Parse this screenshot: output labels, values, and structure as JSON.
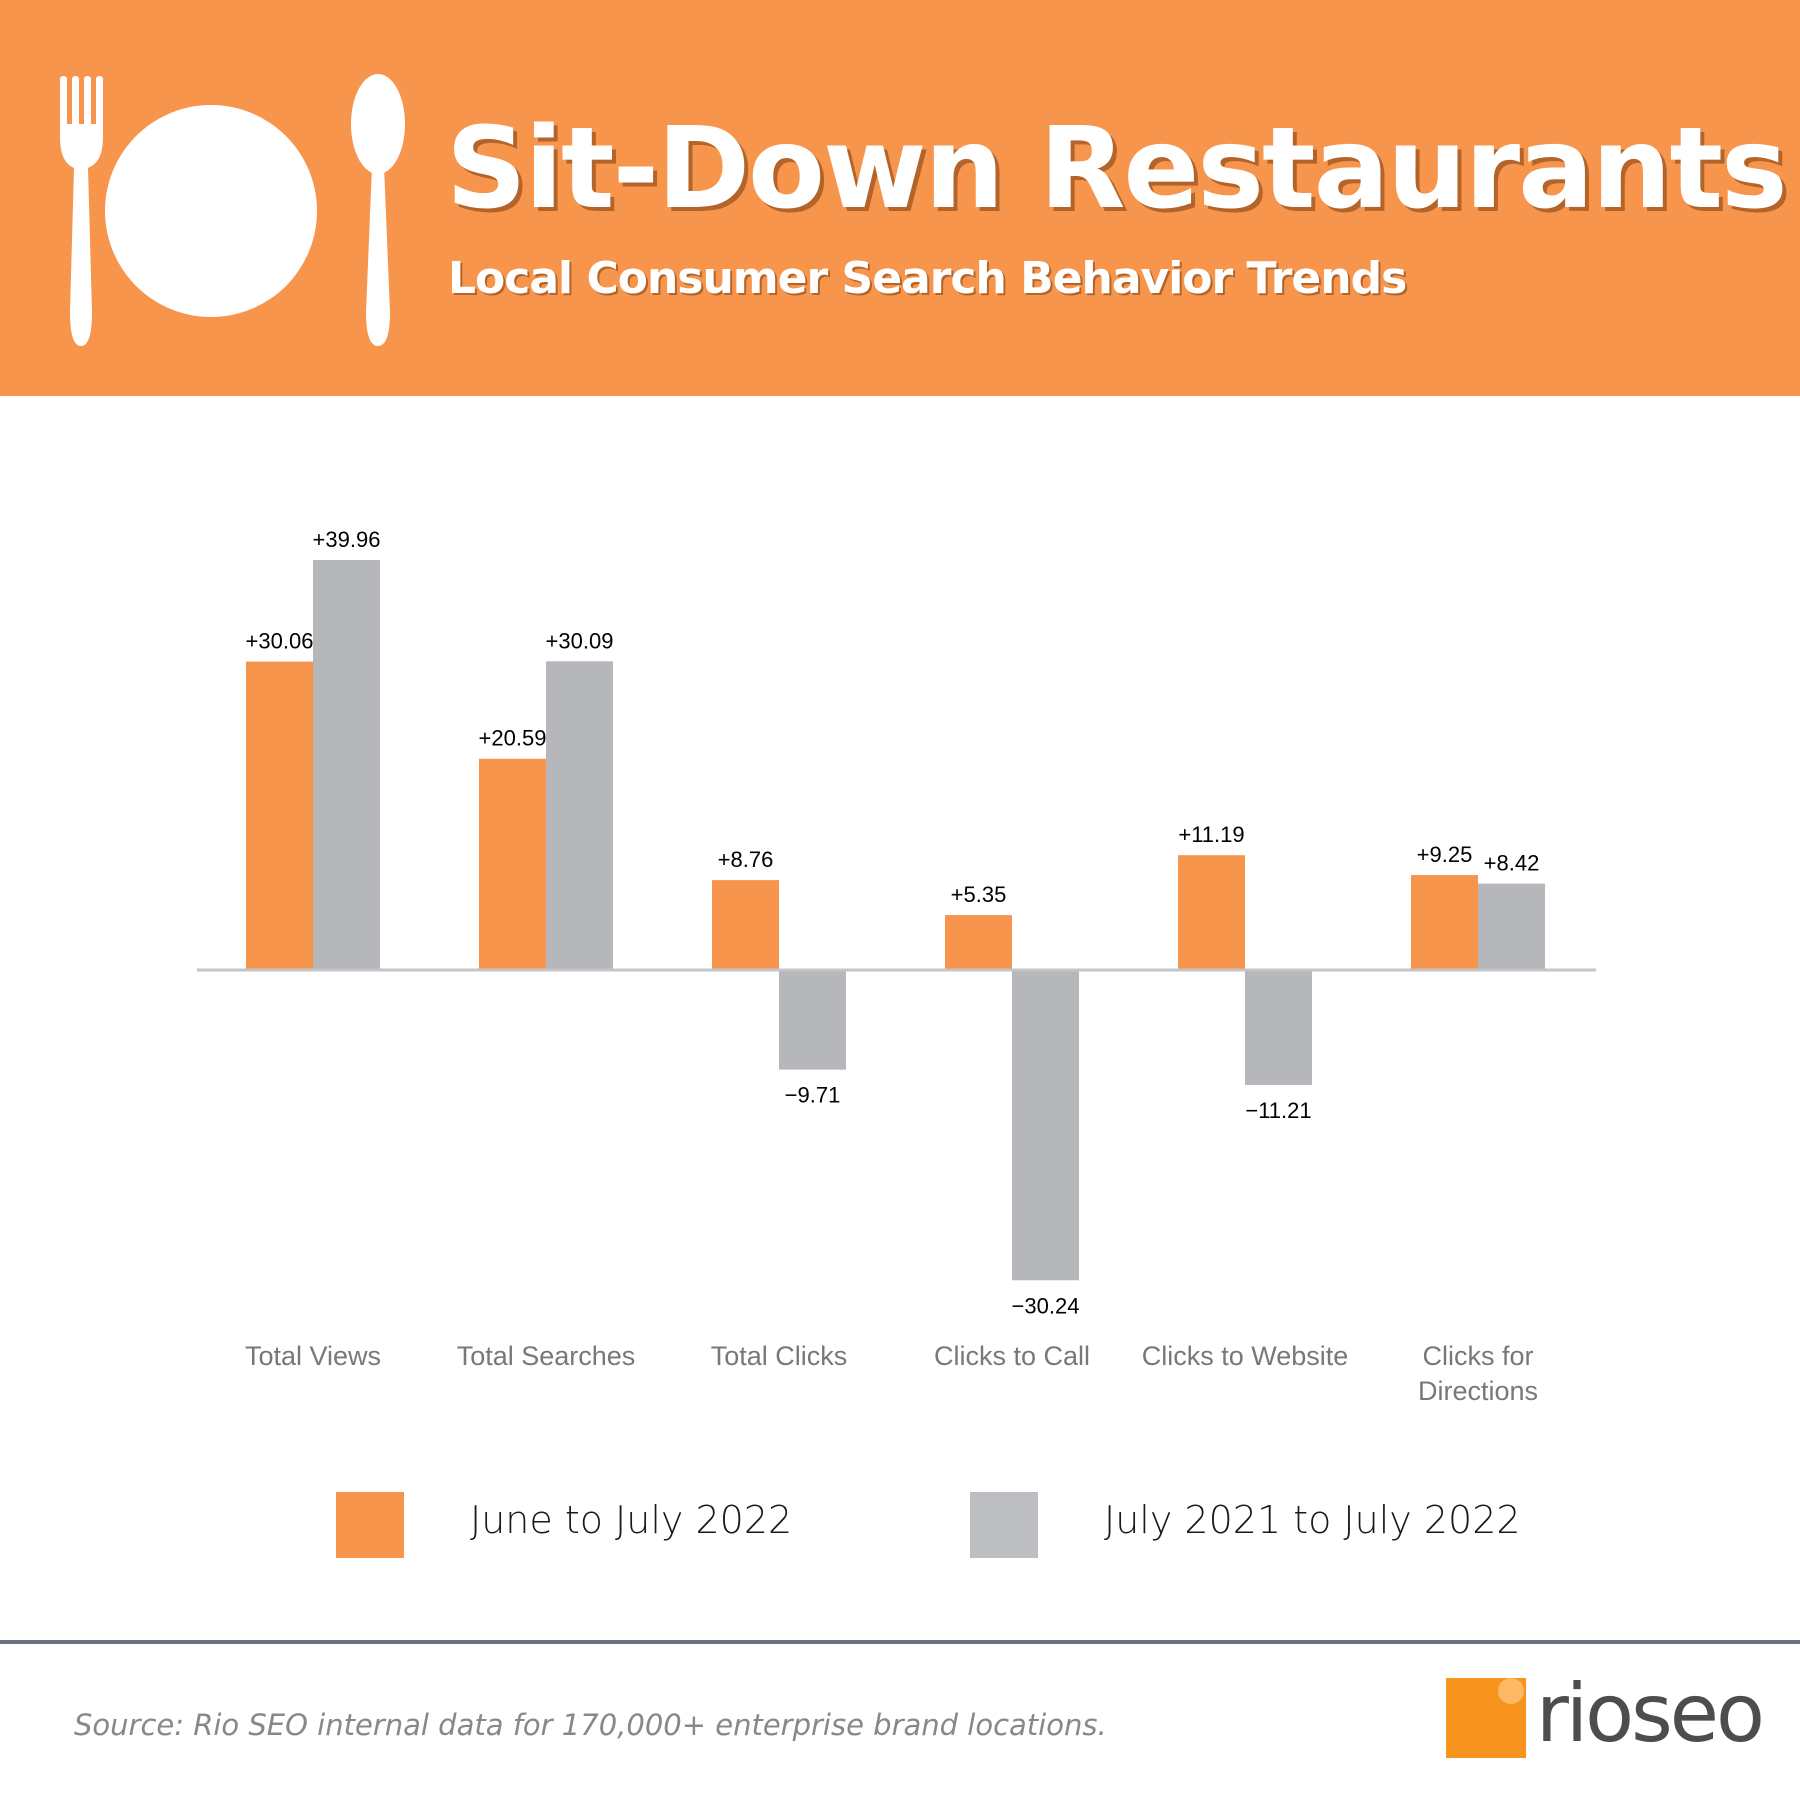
{
  "header": {
    "title": "Sit-Down Restaurants",
    "subtitle": "Local Consumer Search Behavior Trends",
    "icons": [
      "fork-icon",
      "plate-icon",
      "spoon-icon"
    ],
    "background_color": "#F6954B"
  },
  "chart_data": {
    "type": "bar",
    "title": "",
    "xlabel": "",
    "ylabel": "",
    "ylim": [
      -35,
      45
    ],
    "grid": false,
    "categories": [
      "Total Views",
      "Total Searches",
      "Total Clicks",
      "Clicks to Call",
      "Clicks to Website",
      "Clicks for Directions"
    ],
    "series": [
      {
        "name": "June to July 2022",
        "color": "#F6954B",
        "values": [
          30.06,
          20.59,
          8.76,
          5.35,
          11.19,
          9.25
        ],
        "labels": [
          "+30.06",
          "+20.59",
          "+8.76",
          "+5.35",
          "+11.19",
          "+9.25"
        ]
      },
      {
        "name": "July 2021 to July 2022",
        "color": "#B6B7BB",
        "values": [
          39.96,
          30.09,
          -9.71,
          -30.24,
          -11.21,
          8.42
        ],
        "labels": [
          "+39.96",
          "+30.09",
          "−9.71",
          "−30.24",
          "−11.21",
          "+8.42"
        ]
      }
    ],
    "legend_position": "bottom"
  },
  "legend": {
    "items": [
      {
        "label": "June to July 2022",
        "color": "#F6954B"
      },
      {
        "label": "July 2021 to July 2022",
        "color": "#BDBEC1"
      }
    ]
  },
  "footer": {
    "source": "Source: Rio SEO internal data for 170,000+ enterprise brand locations.",
    "logo_text": "rioseo",
    "logo_color": "#F7941D"
  }
}
